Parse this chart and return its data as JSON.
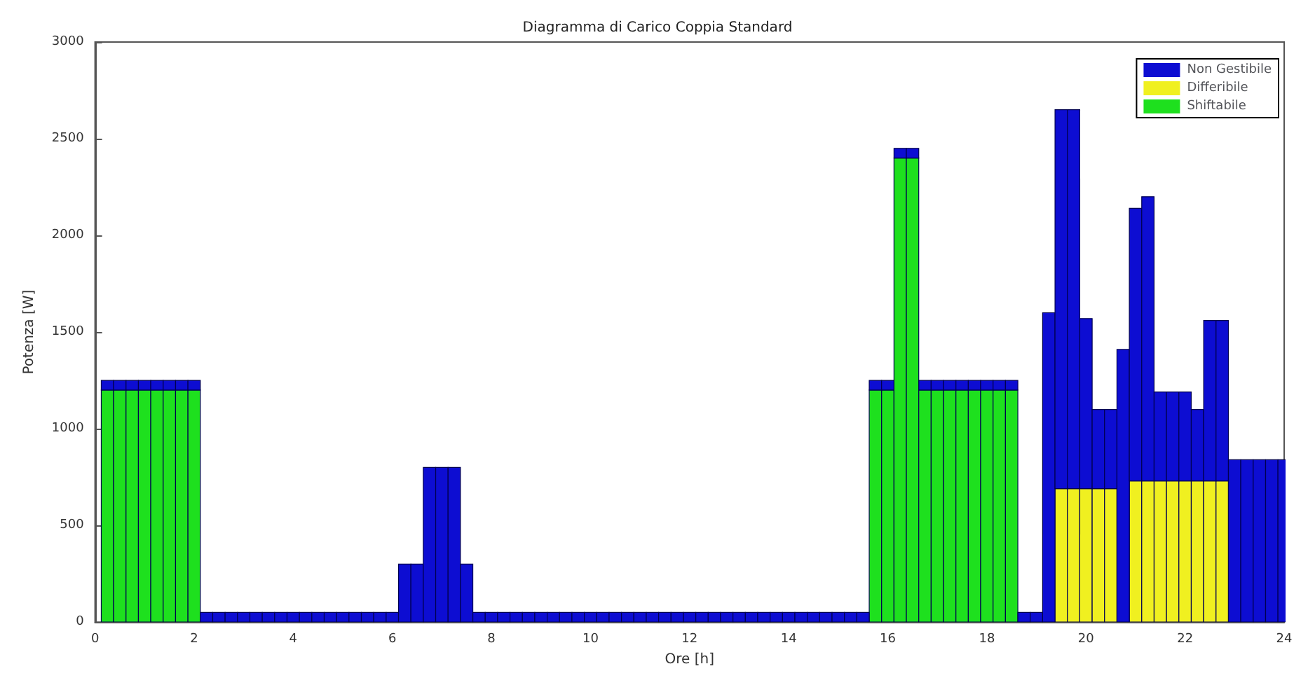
{
  "chart_data": {
    "type": "bar",
    "title": "Diagramma di Carico Coppia Standard",
    "xlabel": "Ore [h]",
    "ylabel": "Potenza [W]",
    "stacked": true,
    "x": [
      0.25,
      0.5,
      0.75,
      1,
      1.25,
      1.5,
      1.75,
      2,
      2.25,
      2.5,
      2.75,
      3,
      3.25,
      3.5,
      3.75,
      4,
      4.25,
      4.5,
      4.75,
      5,
      5.25,
      5.5,
      5.75,
      6,
      6.25,
      6.5,
      6.75,
      7,
      7.25,
      7.5,
      7.75,
      8,
      8.25,
      8.5,
      8.75,
      9,
      9.25,
      9.5,
      9.75,
      10,
      10.25,
      10.5,
      10.75,
      11,
      11.25,
      11.5,
      11.75,
      12,
      12.25,
      12.5,
      12.75,
      13,
      13.25,
      13.5,
      13.75,
      14,
      14.25,
      14.5,
      14.75,
      15,
      15.25,
      15.5,
      15.75,
      16,
      16.25,
      16.5,
      16.75,
      17,
      17.25,
      17.5,
      17.75,
      18,
      18.25,
      18.5,
      18.75,
      19,
      19.25,
      19.5,
      19.75,
      20,
      20.25,
      20.5,
      20.75,
      21,
      21.25,
      21.5,
      21.75,
      22,
      22.25,
      22.5,
      22.75,
      23,
      23.25,
      23.5,
      23.75,
      24
    ],
    "series": [
      {
        "name": "Shiftabile",
        "color": "#1ee01e",
        "values": [
          1200,
          1200,
          1200,
          1200,
          1200,
          1200,
          1200,
          1200,
          0,
          0,
          0,
          0,
          0,
          0,
          0,
          0,
          0,
          0,
          0,
          0,
          0,
          0,
          0,
          0,
          0,
          0,
          0,
          0,
          0,
          0,
          0,
          0,
          0,
          0,
          0,
          0,
          0,
          0,
          0,
          0,
          0,
          0,
          0,
          0,
          0,
          0,
          0,
          0,
          0,
          0,
          0,
          0,
          0,
          0,
          0,
          0,
          0,
          0,
          0,
          0,
          0,
          0,
          1200,
          1200,
          2400,
          2400,
          1200,
          1200,
          1200,
          1200,
          1200,
          1200,
          1200,
          1200,
          0,
          0,
          0,
          0,
          0,
          0,
          0,
          0,
          0,
          0,
          0,
          0,
          0,
          0,
          0,
          0,
          0,
          0,
          0,
          0,
          0,
          0
        ]
      },
      {
        "name": "Differibile",
        "color": "#f0f020",
        "values": [
          0,
          0,
          0,
          0,
          0,
          0,
          0,
          0,
          0,
          0,
          0,
          0,
          0,
          0,
          0,
          0,
          0,
          0,
          0,
          0,
          0,
          0,
          0,
          0,
          0,
          0,
          0,
          0,
          0,
          0,
          0,
          0,
          0,
          0,
          0,
          0,
          0,
          0,
          0,
          0,
          0,
          0,
          0,
          0,
          0,
          0,
          0,
          0,
          0,
          0,
          0,
          0,
          0,
          0,
          0,
          0,
          0,
          0,
          0,
          0,
          0,
          0,
          0,
          0,
          0,
          0,
          0,
          0,
          0,
          0,
          0,
          0,
          0,
          0,
          0,
          0,
          0,
          690,
          690,
          690,
          690,
          690,
          0,
          730,
          730,
          730,
          730,
          730,
          730,
          730,
          730,
          0,
          0,
          0,
          0,
          0
        ]
      },
      {
        "name": "Non Gestibile",
        "color": "#0d0dd2",
        "values": [
          50,
          50,
          50,
          50,
          50,
          50,
          50,
          50,
          50,
          50,
          50,
          50,
          50,
          50,
          50,
          50,
          50,
          50,
          50,
          50,
          50,
          50,
          50,
          50,
          300,
          300,
          800,
          800,
          800,
          300,
          50,
          50,
          50,
          50,
          50,
          50,
          50,
          50,
          50,
          50,
          50,
          50,
          50,
          50,
          50,
          50,
          50,
          50,
          50,
          50,
          50,
          50,
          50,
          50,
          50,
          50,
          50,
          50,
          50,
          50,
          50,
          50,
          50,
          50,
          50,
          50,
          50,
          50,
          50,
          50,
          50,
          50,
          50,
          50,
          50,
          50,
          1600,
          1960,
          1960,
          880,
          410,
          410,
          1410,
          1410,
          1470,
          460,
          460,
          460,
          370,
          830,
          830,
          840,
          840,
          840,
          840,
          840
        ]
      }
    ],
    "xlim": [
      0,
      24
    ],
    "xticks": [
      0,
      2,
      4,
      6,
      8,
      10,
      12,
      14,
      16,
      18,
      20,
      22,
      24
    ],
    "ylim": [
      0,
      3000
    ],
    "yticks": [
      0,
      500,
      1000,
      1500,
      2000,
      2500,
      3000
    ],
    "grid": false,
    "legend": "top right"
  }
}
